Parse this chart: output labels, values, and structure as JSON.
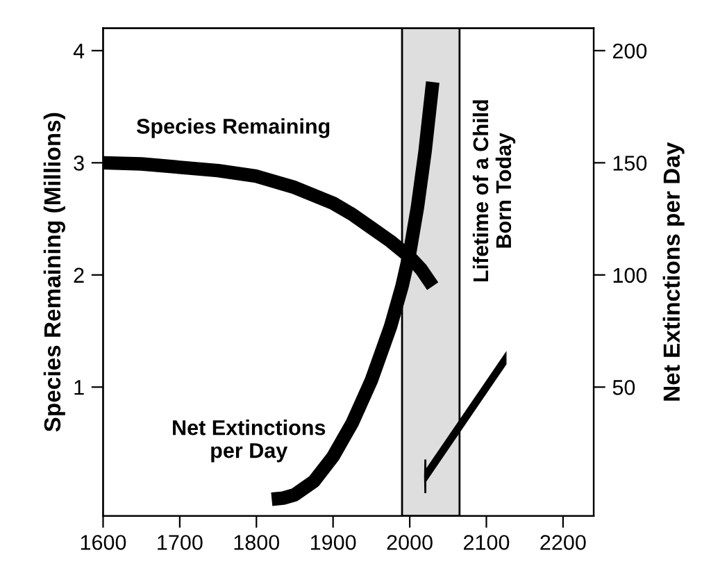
{
  "chart_data": {
    "type": "line",
    "ylabel": "Species Remaining (Millions)",
    "y2label": "Net Extinctions per Day",
    "series": [
      {
        "name": "Species Remaining",
        "color": "#000000",
        "x": [
          1600,
          1650,
          1700,
          1750,
          1800,
          1850,
          1900,
          1925,
          1950,
          1975,
          2000,
          2015,
          2030
        ],
        "values": [
          3.0,
          2.99,
          2.96,
          2.93,
          2.88,
          2.78,
          2.64,
          2.54,
          2.42,
          2.3,
          2.16,
          2.05,
          1.9
        ]
      },
      {
        "name": "Net Extinctions\nper Day",
        "color": "#000000",
        "axis": "y2",
        "x": [
          1820,
          1835,
          1850,
          1875,
          1900,
          1925,
          1950,
          1975,
          1990,
          2000,
          2010,
          2020,
          2030
        ],
        "values": [
          0,
          0.5,
          2,
          8,
          19,
          34,
          53,
          77,
          95,
          110,
          130,
          155,
          186
        ]
      }
    ],
    "xlim": [
      1600,
      2240
    ],
    "xticks": [
      1600,
      1700,
      1800,
      1900,
      2000,
      2100,
      2200
    ],
    "ylim": [
      -0.15,
      4.2
    ],
    "yticks": [
      1,
      2,
      3,
      4
    ],
    "y2lim": [
      -7.5,
      210
    ],
    "y2ticks": [
      50,
      100,
      150,
      200
    ],
    "bands": [
      {
        "axis": "x",
        "from": 1990,
        "to": 2065,
        "label": "Lifetime of a Child\nBorn Today",
        "color": "#dedede"
      }
    ],
    "grid": false,
    "line_style": "solid",
    "marker": "none"
  }
}
